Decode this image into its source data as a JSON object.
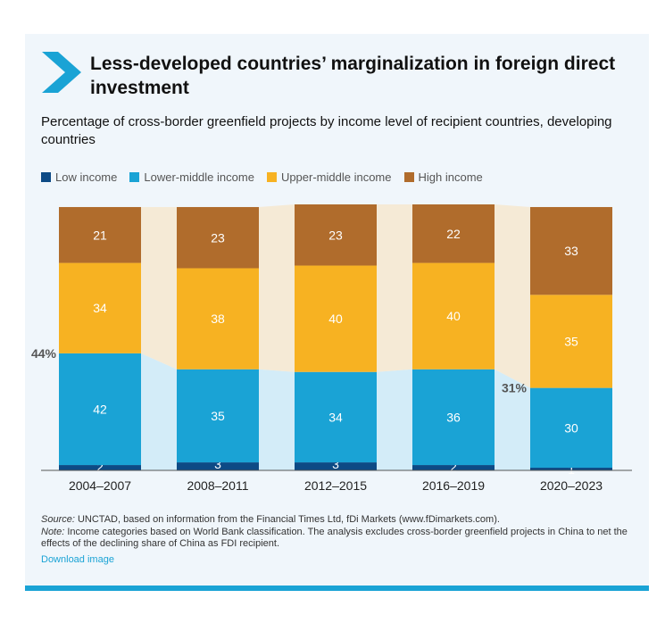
{
  "header": {
    "title": "Less-developed countries’ marginalization in foreign direct investment",
    "subtitle": "Percentage of cross-border greenfield projects by income level of recipient countries, developing countries"
  },
  "colors": {
    "low": "#0d4a85",
    "lower_middle": "#1aa3d5",
    "upper_middle": "#f7b222",
    "high": "#b06c2c",
    "connector_light": "#d3ecf8",
    "connector_warm": "#f5ead6",
    "accent": "#1aa3d5",
    "panel": "#f0f6fb"
  },
  "chart_data": {
    "type": "bar",
    "stacked": true,
    "normalized": true,
    "categories": [
      "2004–2007",
      "2008–2011",
      "2012–2015",
      "2016–2019",
      "2020–2023"
    ],
    "series": [
      {
        "name": "Low income",
        "key": "low",
        "values": [
          2,
          3,
          3,
          2,
          1
        ]
      },
      {
        "name": "Lower-middle income",
        "key": "lower_middle",
        "values": [
          42,
          35,
          34,
          36,
          30
        ]
      },
      {
        "name": "Upper-middle income",
        "key": "upper_middle",
        "values": [
          34,
          38,
          40,
          40,
          35
        ]
      },
      {
        "name": "High income",
        "key": "high",
        "values": [
          21,
          23,
          23,
          22,
          33
        ]
      }
    ],
    "annotations": [
      {
        "text": "44%",
        "category_index": 0,
        "value": 44
      },
      {
        "text": "31%",
        "category_index": 4,
        "value": 31
      }
    ],
    "grid": false,
    "legend_position": "top-left"
  },
  "footer": {
    "source_label": "Source:",
    "source_text": " UNCTAD, based on information from the Financial Times Ltd, fDi Markets (www.fDimarkets.com).",
    "note_label": "Note:",
    "note_text": " Income categories based on World Bank classification. The analysis excludes cross-border greenfield projects in China to net the effects of the declining share of China as FDI recipient.",
    "download_label": "Download image"
  }
}
